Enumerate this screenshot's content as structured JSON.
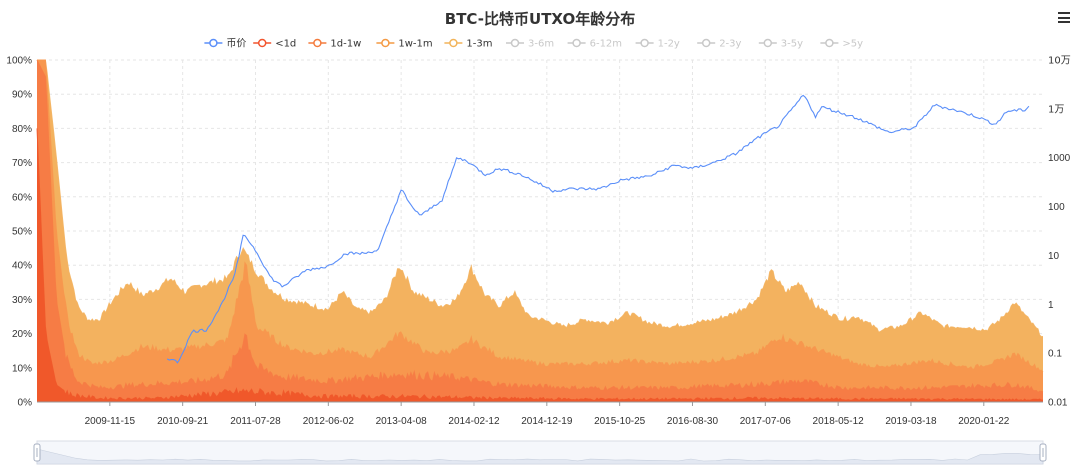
{
  "chart_data": {
    "type": "area",
    "title": "BTC-比特币UTXO年龄分布",
    "legend": {
      "placement": "top-center",
      "items": [
        {
          "name": "币价",
          "color": "#5b8ff9",
          "active": true
        },
        {
          "name": "<1d",
          "color": "#f2542d",
          "active": true
        },
        {
          "name": "1d-1w",
          "color": "#f47b3d",
          "active": true
        },
        {
          "name": "1w-1m",
          "color": "#f49a44",
          "active": true
        },
        {
          "name": "1-3m",
          "color": "#f2b45a",
          "active": true
        },
        {
          "name": "3-6m",
          "color": "#c8c8c8",
          "active": false
        },
        {
          "name": "6-12m",
          "color": "#c8c8c8",
          "active": false
        },
        {
          "name": "1-2y",
          "color": "#c8c8c8",
          "active": false
        },
        {
          "name": "2-3y",
          "color": "#c8c8c8",
          "active": false
        },
        {
          "name": "3-5y",
          "color": "#c8c8c8",
          "active": false
        },
        {
          "name": ">5y",
          "color": "#c8c8c8",
          "active": false
        }
      ]
    },
    "x_range": [
      "2009-01-09",
      "2020-09-30"
    ],
    "x_tick_labels": [
      "2009-11-15",
      "2010-09-21",
      "2011-07-28",
      "2012-06-02",
      "2013-04-08",
      "2014-02-12",
      "2014-12-19",
      "2015-10-25",
      "2016-08-30",
      "2017-07-06",
      "2018-05-12",
      "2019-03-18",
      "2020-01-22"
    ],
    "y_left": {
      "ylim": [
        0,
        100
      ],
      "unit": "%",
      "tick_labels": [
        "0%",
        "10%",
        "20%",
        "30%",
        "40%",
        "50%",
        "60%",
        "70%",
        "80%",
        "90%",
        "100%"
      ]
    },
    "y_right": {
      "scale": "log",
      "ylim": [
        0.01,
        100000
      ],
      "tick_labels": [
        "0.01",
        "0.1",
        "1",
        "10",
        "100",
        "1000",
        "1万",
        "10万"
      ]
    },
    "grid": true,
    "stack_colors": {
      "1-3m": "#f3b25f",
      "1w-1m": "#f7974e",
      "1d-1w": "#f67c45",
      "<1d": "#f0582a"
    },
    "series": [
      {
        "name": "1-3m",
        "unit": "%",
        "stacked_cumulative": true,
        "x": [
          "2009-01-09",
          "2009-02-15",
          "2009-04-01",
          "2009-05-15",
          "2009-07-01",
          "2009-08-15",
          "2009-10-01",
          "2009-12-01",
          "2010-02-01",
          "2010-04-01",
          "2010-06-01",
          "2010-08-01",
          "2010-10-01",
          "2010-12-01",
          "2011-02-01",
          "2011-04-01",
          "2011-06-01",
          "2011-08-01",
          "2011-10-01",
          "2011-12-01",
          "2012-02-01",
          "2012-04-01",
          "2012-06-01",
          "2012-08-01",
          "2012-10-01",
          "2012-12-01",
          "2013-02-01",
          "2013-04-01",
          "2013-06-01",
          "2013-08-01",
          "2013-10-01",
          "2013-12-01",
          "2014-02-01",
          "2014-04-01",
          "2014-06-01",
          "2014-08-01",
          "2014-10-01",
          "2014-12-01",
          "2015-03-01",
          "2015-06-01",
          "2015-09-01",
          "2015-12-01",
          "2016-03-01",
          "2016-06-01",
          "2016-09-01",
          "2016-12-01",
          "2017-03-01",
          "2017-06-01",
          "2017-08-01",
          "2017-10-01",
          "2017-12-01",
          "2018-02-01",
          "2018-04-01",
          "2018-06-01",
          "2018-08-01",
          "2018-11-01",
          "2019-02-01",
          "2019-05-01",
          "2019-08-01",
          "2019-11-01",
          "2020-02-01",
          "2020-04-01",
          "2020-06-01",
          "2020-09-30"
        ],
        "values": [
          100,
          100,
          72,
          42,
          28,
          24,
          24,
          30,
          35,
          31,
          33,
          36,
          32,
          34,
          35,
          36,
          45,
          38,
          33,
          30,
          29,
          28,
          27,
          32,
          27,
          26,
          30,
          40,
          32,
          30,
          28,
          30,
          39,
          31,
          28,
          32,
          25,
          24,
          22,
          24,
          23,
          26,
          23,
          22,
          23,
          24,
          26,
          30,
          38,
          32,
          35,
          28,
          26,
          24,
          25,
          21,
          22,
          26,
          22,
          22,
          21,
          24,
          29,
          19
        ]
      },
      {
        "name": "1w-1m",
        "unit": "%",
        "stacked_cumulative": true,
        "x": [
          "2009-01-09",
          "2009-02-15",
          "2009-04-01",
          "2009-05-15",
          "2009-07-01",
          "2009-09-01",
          "2009-12-01",
          "2010-04-01",
          "2010-08-01",
          "2010-12-01",
          "2011-04-01",
          "2011-06-15",
          "2011-08-01",
          "2011-12-01",
          "2012-04-01",
          "2012-08-01",
          "2012-12-01",
          "2013-04-01",
          "2013-08-01",
          "2013-12-01",
          "2014-02-01",
          "2014-06-01",
          "2014-12-01",
          "2015-06-01",
          "2015-12-01",
          "2016-06-01",
          "2016-12-01",
          "2017-06-01",
          "2017-09-01",
          "2017-12-01",
          "2018-04-01",
          "2018-08-01",
          "2018-12-01",
          "2019-06-01",
          "2019-12-01",
          "2020-04-01",
          "2020-06-01",
          "2020-09-30"
        ],
        "values": [
          100,
          100,
          50,
          25,
          14,
          11,
          12,
          16,
          15,
          16,
          18,
          40,
          22,
          16,
          14,
          15,
          13,
          20,
          14,
          15,
          18,
          13,
          11,
          11,
          12,
          11,
          12,
          14,
          19,
          17,
          14,
          11,
          10,
          12,
          10,
          12,
          14,
          9
        ]
      },
      {
        "name": "1d-1w",
        "unit": "%",
        "stacked_cumulative": true,
        "x": [
          "2009-01-09",
          "2009-02-15",
          "2009-04-01",
          "2009-05-15",
          "2009-07-01",
          "2009-10-01",
          "2010-04-01",
          "2010-12-01",
          "2011-04-01",
          "2011-06-15",
          "2011-08-01",
          "2011-12-01",
          "2012-06-01",
          "2013-04-01",
          "2013-12-01",
          "2014-06-01",
          "2015-06-01",
          "2016-06-01",
          "2017-06-01",
          "2017-12-01",
          "2018-06-01",
          "2019-06-01",
          "2020-06-01",
          "2020-09-30"
        ],
        "values": [
          100,
          95,
          30,
          12,
          6,
          4,
          5,
          6,
          8,
          20,
          10,
          7,
          6,
          8,
          7,
          5,
          4,
          4,
          5,
          6,
          4,
          4,
          5,
          3
        ]
      },
      {
        "name": "<1d",
        "unit": "%",
        "stacked_cumulative": true,
        "x": [
          "2009-01-09",
          "2009-02-15",
          "2009-04-01",
          "2009-06-01",
          "2009-10-01",
          "2010-06-01",
          "2011-06-15",
          "2012-06-01",
          "2013-06-01",
          "2014-06-01",
          "2015-06-01",
          "2016-06-01",
          "2017-06-01",
          "2018-06-01",
          "2019-06-01",
          "2020-09-30"
        ],
        "values": [
          80,
          20,
          5,
          2,
          1,
          1,
          3,
          1.5,
          1.5,
          1,
          0.8,
          0.8,
          1,
          0.8,
          0.8,
          0.6
        ]
      },
      {
        "name": "币价",
        "unit": "USD",
        "axis": "right-log",
        "x": [
          "2010-07-17",
          "2010-09-01",
          "2010-11-01",
          "2011-01-01",
          "2011-03-01",
          "2011-05-01",
          "2011-06-08",
          "2011-08-01",
          "2011-10-01",
          "2011-11-20",
          "2012-03-01",
          "2012-06-01",
          "2012-08-15",
          "2012-11-01",
          "2013-01-01",
          "2013-04-09",
          "2013-05-15",
          "2013-07-01",
          "2013-10-01",
          "2013-12-01",
          "2014-01-15",
          "2014-04-01",
          "2014-06-01",
          "2014-09-01",
          "2015-01-15",
          "2015-04-01",
          "2015-08-01",
          "2015-11-01",
          "2016-03-01",
          "2016-06-15",
          "2016-09-01",
          "2016-12-01",
          "2017-03-01",
          "2017-06-01",
          "2017-09-01",
          "2017-12-17",
          "2018-02-06",
          "2018-03-01",
          "2018-05-01",
          "2018-08-01",
          "2018-12-15",
          "2019-04-01",
          "2019-06-26",
          "2019-09-01",
          "2019-12-15",
          "2020-03-12",
          "2020-05-01",
          "2020-07-15",
          "2020-08-01"
        ],
        "values": [
          0.08,
          0.065,
          0.28,
          0.3,
          0.9,
          4,
          28,
          12,
          3.5,
          2.3,
          5,
          6,
          11,
          11,
          13,
          230,
          110,
          65,
          140,
          1000,
          850,
          450,
          600,
          450,
          210,
          230,
          230,
          350,
          420,
          700,
          600,
          800,
          1200,
          2500,
          4500,
          19500,
          6900,
          11000,
          9000,
          6500,
          3300,
          4100,
          12000,
          10000,
          7200,
          4800,
          9000,
          9500,
          11500
        ]
      }
    ]
  }
}
